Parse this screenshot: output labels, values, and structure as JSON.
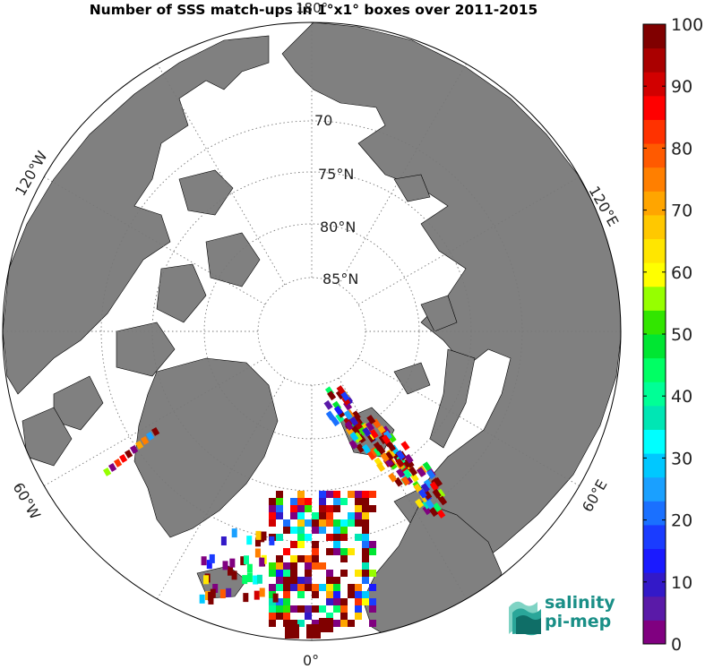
{
  "title": "Number of SSS match-ups in 1°x1° boxes over 2011-2015",
  "map": {
    "projection": "north polar stereographic",
    "land_color": "#808080",
    "ocean_color": "#ffffff",
    "coast_color": "#000000",
    "lat_labels": [
      "70",
      "75°N",
      "80°N",
      "85°N"
    ],
    "lon_labels": {
      "top": "180°",
      "bottom": "0°",
      "left_upper": "120°W",
      "left_lower": "60°W",
      "right_upper": "120°E",
      "right_lower": "60°E"
    }
  },
  "colorbar": {
    "min": 0,
    "max": 100,
    "tick_labels": [
      "0",
      "10",
      "20",
      "30",
      "40",
      "50",
      "60",
      "70",
      "80",
      "90",
      "100"
    ],
    "colors": [
      "#800080",
      "#5a1aa8",
      "#3319c8",
      "#1a1aff",
      "#1a3cff",
      "#1a70ff",
      "#1aa0ff",
      "#00c8ff",
      "#00ffff",
      "#00e6b4",
      "#00ff96",
      "#00ff64",
      "#00e632",
      "#32e600",
      "#96ff00",
      "#ffff00",
      "#ffe600",
      "#ffc800",
      "#ffa500",
      "#ff7f00",
      "#ff5a00",
      "#ff3200",
      "#ff0000",
      "#d20000",
      "#aa0000",
      "#800000"
    ]
  },
  "logo": {
    "line1": "salinity",
    "line2": "pi-mep",
    "color": "#1a8f87"
  }
}
